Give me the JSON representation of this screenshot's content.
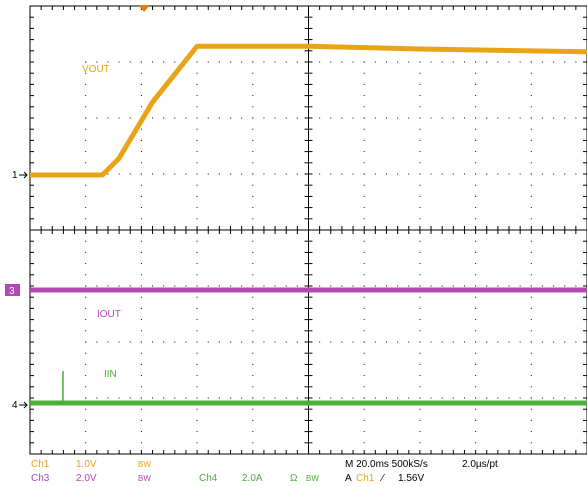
{
  "trace_labels": {
    "vout": "VOUT",
    "iout": "IOUT",
    "iin": "IIN"
  },
  "markers": {
    "ch1": "1",
    "ch3": "3",
    "ch4": "4"
  },
  "readouts": {
    "ch1_name": "Ch1",
    "ch1_scale": "1.0V",
    "ch1_bw": "BW",
    "ch3_name": "Ch3",
    "ch3_scale": "2.0V",
    "ch3_bw": "BW",
    "ch4_name": "Ch4",
    "ch4_scale": "2.0A",
    "ch4_ohm": "Ω",
    "ch4_bw": "BW",
    "timebase": "M 20.0ms 500kS/s",
    "per_point": "2.0µs/pt",
    "trigger_prefix": "A",
    "trigger_source": "Ch1",
    "trigger_slope": "⁄",
    "trigger_level": "1.56V"
  },
  "colors": {
    "ch1": "#e8a317",
    "ch3": "#b347b3",
    "ch4": "#4caf3a",
    "grid": "#000000",
    "trigger_marker": "#e87a1a"
  },
  "chart_data": {
    "type": "line",
    "x_divisions": 10,
    "y_divisions": 8,
    "series": [
      {
        "name": "VOUT",
        "channel": "Ch1",
        "x_div": [
          0,
          1.3,
          1.6,
          2.2,
          3.0,
          5.0,
          7.0,
          10.0
        ],
        "y_div": [
          1.2,
          1.2,
          1.5,
          2.5,
          3.5,
          3.5,
          3.45,
          3.4
        ]
      },
      {
        "name": "IOUT",
        "channel": "Ch3",
        "x_div": [
          0,
          10.0
        ],
        "y_div": [
          0,
          0
        ]
      },
      {
        "name": "IIN",
        "channel": "Ch4",
        "x_div": [
          0,
          10.0
        ],
        "y_div": [
          0,
          0
        ]
      }
    ]
  }
}
